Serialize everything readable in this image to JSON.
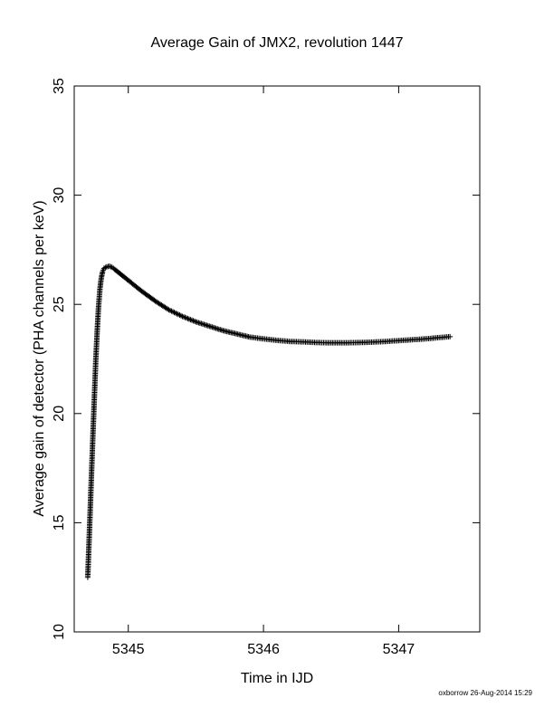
{
  "chart_data": {
    "type": "scatter",
    "marker": "plus",
    "color": "#000000",
    "title": "Average Gain of JMX2, revolution 1447",
    "xlabel": "Time in IJD",
    "ylabel": "Average gain of detector (PHA channels per keV)",
    "xlim": [
      5344.6,
      5347.6
    ],
    "ylim": [
      10,
      35
    ],
    "xticks": [
      5345,
      5346,
      5347
    ],
    "xtick_labels": [
      "5345",
      "5346",
      "5347"
    ],
    "yticks": [
      10,
      15,
      20,
      25,
      30,
      35
    ],
    "ytick_labels": [
      "10",
      "15",
      "20",
      "25",
      "30",
      "35"
    ],
    "grid": false,
    "legend": "none",
    "series": [
      {
        "x": [
          5344.7,
          5344.71,
          5344.72,
          5344.73,
          5344.74,
          5344.75,
          5344.76,
          5344.77,
          5344.78,
          5344.79,
          5344.8,
          5344.81,
          5344.82,
          5344.84,
          5344.86,
          5344.88,
          5344.9,
          5344.93,
          5344.96,
          5345.0,
          5345.05,
          5345.1,
          5345.2,
          5345.3,
          5345.4,
          5345.5,
          5345.6,
          5345.7,
          5345.8,
          5345.9,
          5346.0,
          5346.1,
          5346.2,
          5346.3,
          5346.4,
          5346.5,
          5346.6,
          5346.7,
          5346.8,
          5346.9,
          5347.0,
          5347.1,
          5347.2,
          5347.3,
          5347.38
        ],
        "y": [
          12.5,
          14.2,
          15.9,
          17.6,
          19.3,
          20.9,
          22.5,
          23.8,
          24.9,
          25.7,
          26.2,
          26.5,
          26.65,
          26.72,
          26.75,
          26.7,
          26.6,
          26.45,
          26.3,
          26.1,
          25.85,
          25.6,
          25.15,
          24.75,
          24.45,
          24.2,
          24.0,
          23.8,
          23.65,
          23.5,
          23.42,
          23.35,
          23.3,
          23.28,
          23.25,
          23.24,
          23.24,
          23.25,
          23.27,
          23.3,
          23.34,
          23.38,
          23.42,
          23.48,
          23.52
        ]
      }
    ]
  },
  "footer": {
    "credit": "oxborrow 26-Aug-2014 15:29"
  }
}
